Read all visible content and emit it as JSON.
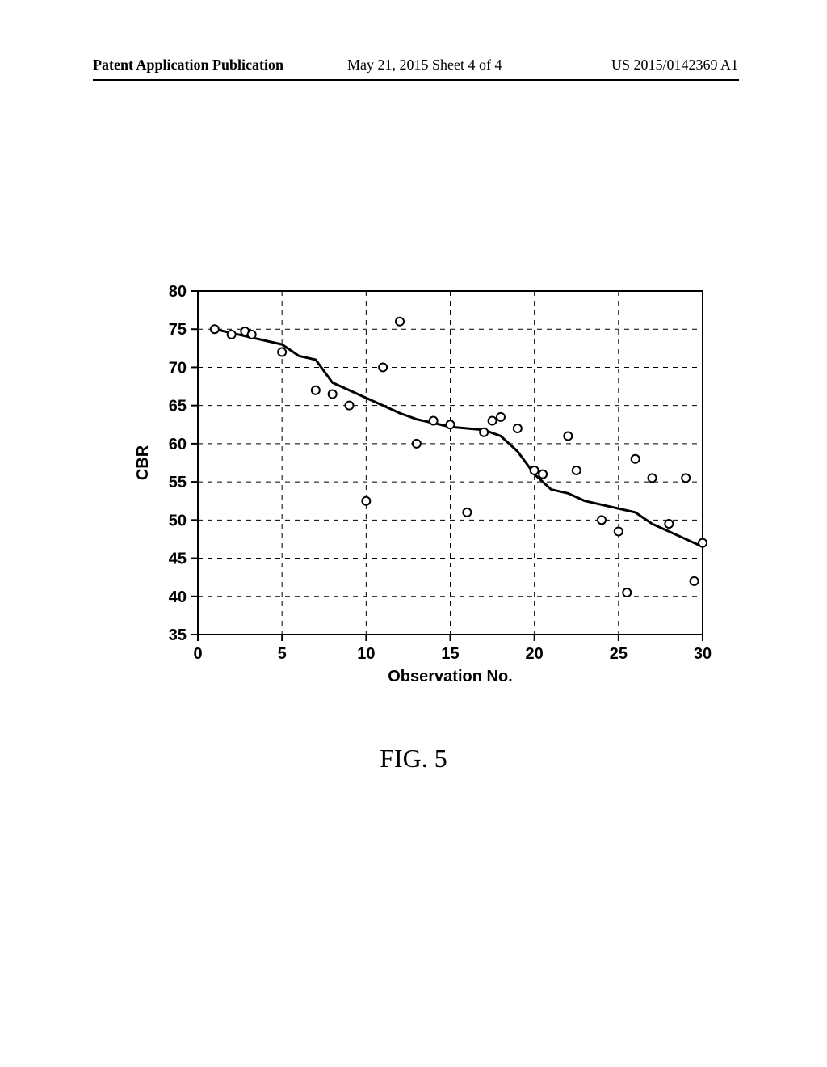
{
  "header": {
    "left": "Patent Application Publication",
    "center": "May 21, 2015  Sheet 4 of 4",
    "right": "US 2015/0142369 A1"
  },
  "figure_caption": "FIG. 5",
  "chart": {
    "type": "line+scatter",
    "xlabel": "Observation No.",
    "ylabel": "CBR",
    "xlim": [
      0,
      30
    ],
    "ylim": [
      35,
      80
    ],
    "xticks": [
      0,
      5,
      10,
      15,
      20,
      25,
      30
    ],
    "yticks": [
      35,
      40,
      45,
      50,
      55,
      60,
      65,
      70,
      75,
      80
    ],
    "background_color": "#ffffff",
    "axis_color": "#000000",
    "grid_color": "#000000",
    "grid_dash": "6,6",
    "tick_font_size": 20,
    "tick_font_weight": "bold",
    "label_font_size": 20,
    "label_font_weight": "bold",
    "line_color": "#000000",
    "line_width": 3,
    "line_points": [
      [
        1,
        75
      ],
      [
        2,
        74.5
      ],
      [
        3,
        74
      ],
      [
        4,
        73.5
      ],
      [
        5,
        73
      ],
      [
        6,
        71.5
      ],
      [
        7,
        71
      ],
      [
        8,
        68
      ],
      [
        9,
        67
      ],
      [
        10,
        66
      ],
      [
        11,
        65
      ],
      [
        12,
        64
      ],
      [
        13,
        63.2
      ],
      [
        14,
        62.7
      ],
      [
        15,
        62.2
      ],
      [
        16,
        62
      ],
      [
        17,
        61.8
      ],
      [
        18,
        61
      ],
      [
        19,
        59
      ],
      [
        20,
        56
      ],
      [
        21,
        54
      ],
      [
        22,
        53.5
      ],
      [
        23,
        52.5
      ],
      [
        24,
        52
      ],
      [
        25,
        51.5
      ],
      [
        26,
        51
      ],
      [
        27,
        49.5
      ],
      [
        28,
        48.5
      ],
      [
        29,
        47.5
      ],
      [
        30,
        46.5
      ]
    ],
    "scatter_color": "#000000",
    "scatter_fill": "#ffffff",
    "scatter_radius": 5,
    "scatter_stroke": 2,
    "scatter_points": [
      [
        1,
        75
      ],
      [
        2,
        74.3
      ],
      [
        2.8,
        74.7
      ],
      [
        3.2,
        74.3
      ],
      [
        5,
        72
      ],
      [
        7,
        67
      ],
      [
        8,
        66.5
      ],
      [
        9,
        65
      ],
      [
        10,
        52.5
      ],
      [
        11,
        70
      ],
      [
        12,
        76
      ],
      [
        13,
        60
      ],
      [
        14,
        63
      ],
      [
        15,
        62.5
      ],
      [
        16,
        51
      ],
      [
        17,
        61.5
      ],
      [
        17.5,
        63
      ],
      [
        18,
        63.5
      ],
      [
        19,
        62
      ],
      [
        20,
        56.5
      ],
      [
        20.5,
        56
      ],
      [
        22,
        61
      ],
      [
        22.5,
        56.5
      ],
      [
        24,
        50
      ],
      [
        25,
        48.5
      ],
      [
        25.5,
        40.5
      ],
      [
        26,
        58
      ],
      [
        27,
        55.5
      ],
      [
        28,
        49.5
      ],
      [
        29,
        55.5
      ],
      [
        29.5,
        42
      ],
      [
        30,
        47
      ]
    ]
  }
}
